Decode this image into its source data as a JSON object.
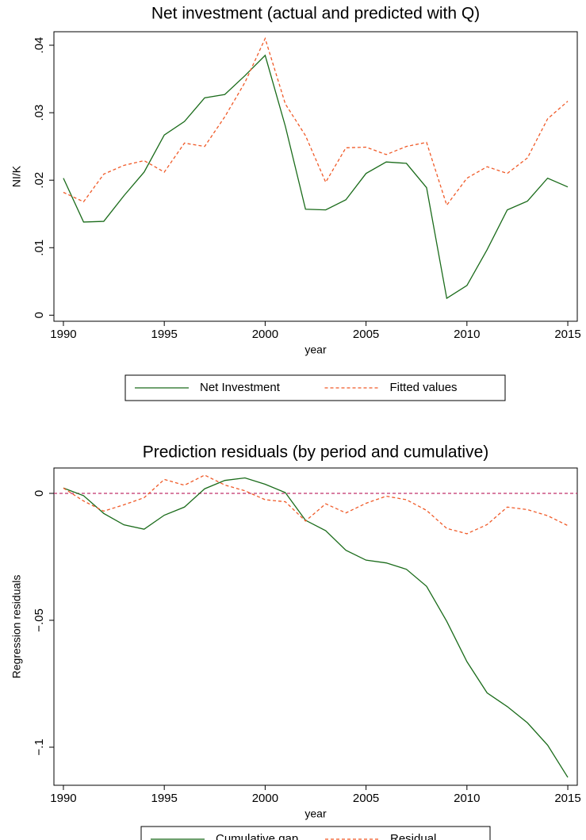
{
  "chart_data": [
    {
      "type": "line",
      "title": "Net investment (actual and predicted with Q)",
      "x_label": "year",
      "y_label": "NI/K",
      "x": [
        1990,
        1991,
        1992,
        1993,
        1994,
        1995,
        1996,
        1997,
        1998,
        1999,
        2000,
        2001,
        2002,
        2003,
        2004,
        2005,
        2006,
        2007,
        2008,
        2009,
        2010,
        2011,
        2012,
        2013,
        2014,
        2015
      ],
      "series": [
        {
          "name": "Net Investment",
          "color": "#1a6b1a",
          "dash": false,
          "values": [
            0.0203,
            0.0138,
            0.0139,
            0.0177,
            0.0212,
            0.0267,
            0.0287,
            0.0322,
            0.0327,
            0.0355,
            0.0385,
            0.028,
            0.0157,
            0.0156,
            0.0171,
            0.021,
            0.0227,
            0.0225,
            0.0189,
            0.0025,
            0.0044,
            0.0097,
            0.0156,
            0.0169,
            0.0203,
            0.019
          ]
        },
        {
          "name": "Fitted values",
          "color": "#f05a28",
          "dash": true,
          "values": [
            0.0182,
            0.0168,
            0.0209,
            0.0222,
            0.0229,
            0.0212,
            0.0255,
            0.025,
            0.0294,
            0.0345,
            0.041,
            0.0313,
            0.0266,
            0.0197,
            0.0248,
            0.0249,
            0.0238,
            0.025,
            0.0256,
            0.0163,
            0.0203,
            0.022,
            0.021,
            0.0233,
            0.0291,
            0.0317
          ]
        }
      ],
      "xlim": [
        1989.53,
        2015.47
      ],
      "xticks": [
        1990,
        1995,
        2000,
        2005,
        2010,
        2015
      ],
      "ylim": [
        -0.0009,
        0.042
      ],
      "yticks": [
        0,
        {
          "value": 0.01,
          "label": ".01"
        },
        {
          "value": 0.02,
          "label": ".02"
        },
        {
          "value": 0.03,
          "label": ".03"
        },
        {
          "value": 0.04,
          "label": ".04"
        }
      ]
    },
    {
      "type": "line",
      "title": "Prediction residuals (by period and cumulative)",
      "x_label": "year",
      "y_label": "Regression residuals",
      "x": [
        1990,
        1991,
        1992,
        1993,
        1994,
        1995,
        1996,
        1997,
        1998,
        1999,
        2000,
        2001,
        2002,
        2003,
        2004,
        2005,
        2006,
        2007,
        2008,
        2009,
        2010,
        2011,
        2012,
        2013,
        2014,
        2015
      ],
      "series": [
        {
          "name": "Cumulative gap",
          "color": "#1a6b1a",
          "dash": false,
          "values": [
            0.0021,
            -0.0009,
            -0.0079,
            -0.0124,
            -0.0141,
            -0.0086,
            -0.0054,
            0.0018,
            0.0051,
            0.0061,
            0.0036,
            0.0003,
            -0.0106,
            -0.0147,
            -0.0224,
            -0.0263,
            -0.0274,
            -0.0299,
            -0.0366,
            -0.0504,
            -0.0663,
            -0.0786,
            -0.084,
            -0.0904,
            -0.0992,
            -0.1119
          ]
        },
        {
          "name": "Residual",
          "color": "#f05a28",
          "dash": true,
          "values": [
            0.0021,
            -0.003,
            -0.007,
            -0.0045,
            -0.0017,
            0.0055,
            0.0032,
            0.0072,
            0.0033,
            0.001,
            -0.0025,
            -0.0033,
            -0.0109,
            -0.0041,
            -0.0077,
            -0.0039,
            -0.0011,
            -0.0025,
            -0.0067,
            -0.0138,
            -0.0159,
            -0.0123,
            -0.0054,
            -0.0064,
            -0.0088,
            -0.0127
          ]
        }
      ],
      "reference_line": {
        "value": 0,
        "color": "#c0306a"
      },
      "xlim": [
        1989.53,
        2015.47
      ],
      "xticks": [
        1990,
        1995,
        2000,
        2005,
        2010,
        2015
      ],
      "ylim": [
        -0.115,
        0.01
      ],
      "yticks": [
        {
          "value": -0.1,
          "label": "−.1"
        },
        {
          "value": -0.05,
          "label": "−.05"
        },
        0
      ]
    }
  ]
}
